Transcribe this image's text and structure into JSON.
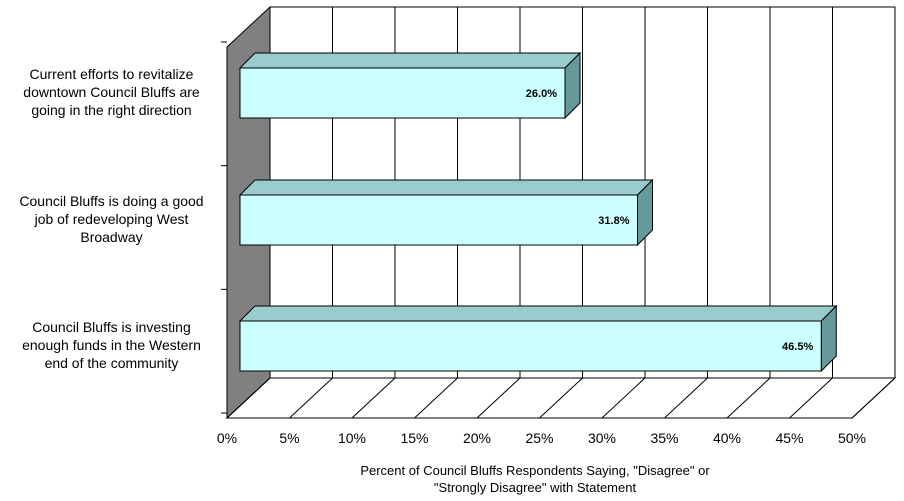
{
  "chart_data": {
    "type": "bar",
    "orientation": "horizontal",
    "categories": [
      "Current efforts to revitalize downtown Council Bluffs are going in the right direction",
      "Council Bluffs is doing a good job of redeveloping West Broadway",
      "Council Bluffs is investing enough funds in the Western end of the community"
    ],
    "category_lines": [
      [
        "Current efforts to revitalize",
        "downtown Council Bluffs are",
        "going in the right direction"
      ],
      [
        "Council Bluffs is doing a good",
        "job of redeveloping West",
        "Broadway"
      ],
      [
        "Council Bluffs is investing",
        "enough funds in the Western",
        "end of the community"
      ]
    ],
    "values": [
      26.0,
      31.8,
      46.5
    ],
    "value_labels": [
      "26.0%",
      "31.8%",
      "46.5%"
    ],
    "xlim": [
      0,
      50
    ],
    "xticks": [
      0,
      5,
      10,
      15,
      20,
      25,
      30,
      35,
      40,
      45,
      50
    ],
    "xtick_labels": [
      "0%",
      "5%",
      "10%",
      "15%",
      "20%",
      "25%",
      "30%",
      "35%",
      "40%",
      "45%",
      "50%"
    ],
    "xlabel_lines": [
      "Percent of Council Bluffs Respondents Saying, \"Disagree\" or",
      "\"Strongly Disagree\"  with Statement"
    ],
    "grid": true,
    "legend": false,
    "colors": {
      "bar_front": "#ccffff",
      "bar_top": "#99cccc",
      "bar_side": "#669999",
      "wall": "#808080",
      "grid": "#000000"
    }
  }
}
